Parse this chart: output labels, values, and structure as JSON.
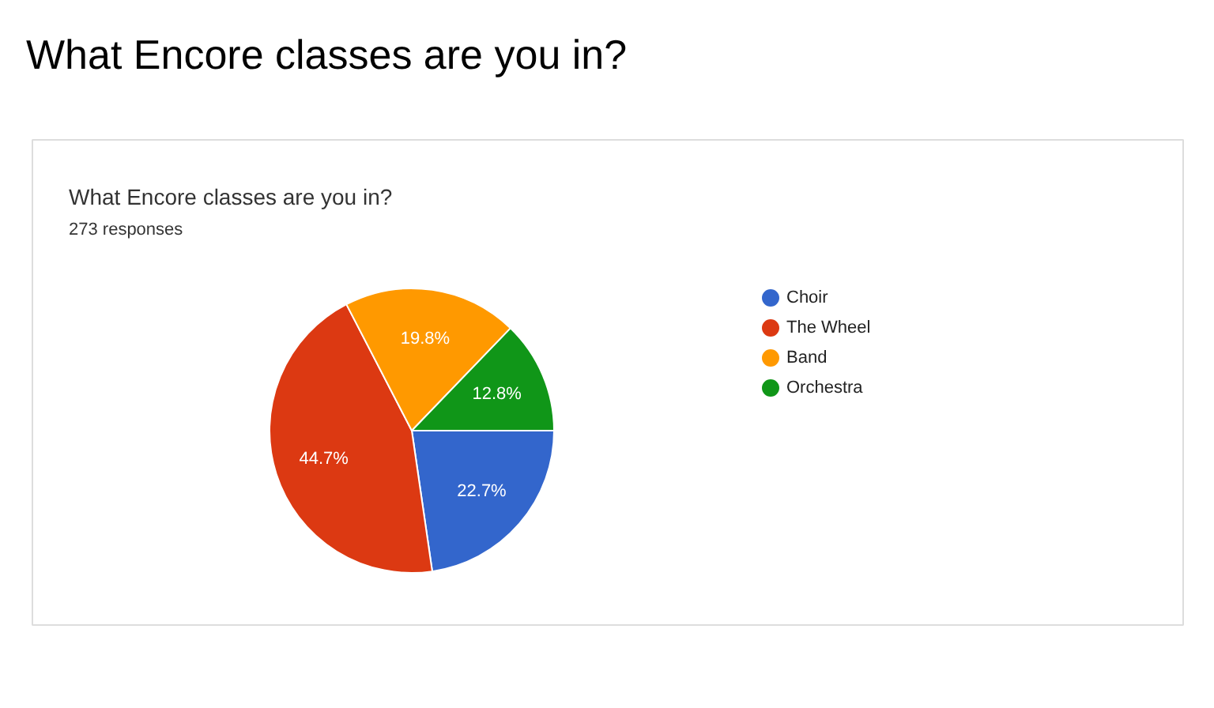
{
  "chart_data": {
    "type": "pie",
    "title": "What Encore classes are you in?",
    "subtitle": "273 responses",
    "annotations": [
      "What Encore classes are you in?"
    ],
    "categories": [
      "Choir",
      "The Wheel",
      "Band",
      "Orchestra"
    ],
    "values": [
      22.7,
      44.7,
      19.8,
      12.8
    ],
    "colors": [
      "#3366cc",
      "#dc3912",
      "#ff9900",
      "#109618"
    ],
    "value_labels": [
      "22.7%",
      "44.7%",
      "19.8%",
      "12.8%"
    ],
    "legend": "right"
  }
}
